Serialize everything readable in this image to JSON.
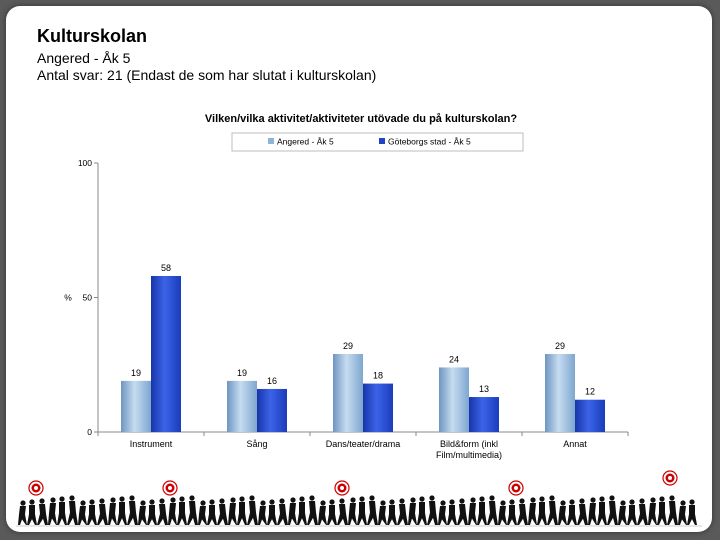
{
  "slide": {
    "title": "Kulturskolan",
    "subtitle_line1": "Angered - Åk 5",
    "subtitle_line2": "Antal svar: 21 (Endast de som har slutat i kulturskolan)"
  },
  "chart_data": {
    "type": "bar",
    "title": "Vilken/vilka aktivitet/aktiviteter utövade du på kulturskolan?",
    "ylabel": "%",
    "ylim": [
      0,
      100
    ],
    "yticks": [
      0,
      50,
      100
    ],
    "categories": [
      "Instrument",
      "Sång",
      "Dans/teater/drama",
      "Bild&form (inkl Film/multimedia)",
      "Annat"
    ],
    "category_lines": [
      [
        "Instrument"
      ],
      [
        "Sång"
      ],
      [
        "Dans/teater/drama"
      ],
      [
        "Bild&form (inkl",
        "Film/multimedia)"
      ],
      [
        "Annat"
      ]
    ],
    "series": [
      {
        "name": "Angered - Åk 5",
        "values": [
          19,
          19,
          29,
          24,
          29
        ],
        "color": "#8fb4d9"
      },
      {
        "name": "Göteborgs stad - Åk 5",
        "values": [
          58,
          16,
          18,
          13,
          12
        ],
        "color": "#1f44c8"
      }
    ],
    "legend_position": "top",
    "grid": false,
    "data_labels": true
  }
}
